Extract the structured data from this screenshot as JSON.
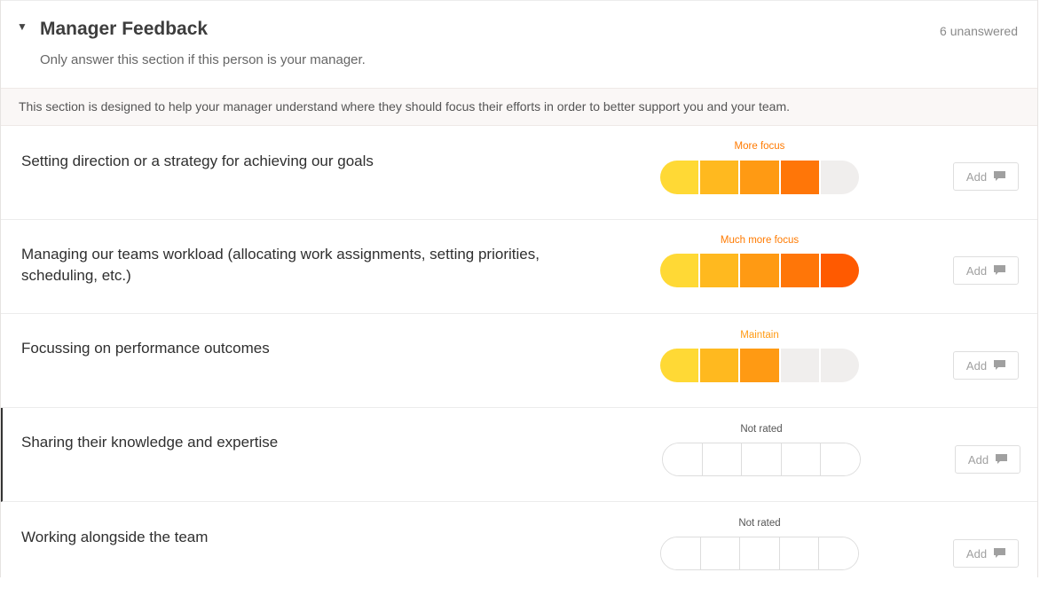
{
  "section": {
    "title": "Manager Feedback",
    "subtitle": "Only answer this section if this person is your manager.",
    "unanswered": "6 unanswered",
    "note": "This section is designed to help your manager understand where they should focus their efforts in order to better support you and your team."
  },
  "colors": {
    "scale": [
      "#ffd935",
      "#ffb91f",
      "#ff9a13",
      "#ff7608",
      "#ff5a00"
    ],
    "empty": "#f0eeed",
    "label_accent": "#ff7a00",
    "label_maintain": "#ff9a13",
    "label_neutral": "#555555"
  },
  "items": [
    {
      "question": "Setting direction or a strategy for achieving our goals",
      "rating_label": "More focus",
      "filled": 4,
      "add_label": "Add"
    },
    {
      "question": "Managing our teams workload (allocating work assignments, setting priorities, scheduling, etc.)",
      "rating_label": "Much more focus",
      "filled": 5,
      "add_label": "Add"
    },
    {
      "question": "Focussing on performance outcomes",
      "rating_label": "Maintain",
      "filled": 3,
      "add_label": "Add"
    },
    {
      "question": "Sharing their knowledge and expertise",
      "rating_label": "Not rated",
      "filled": 0,
      "add_label": "Add"
    },
    {
      "question": "Working alongside the team",
      "rating_label": "Not rated",
      "filled": 0,
      "add_label": "Add"
    }
  ]
}
